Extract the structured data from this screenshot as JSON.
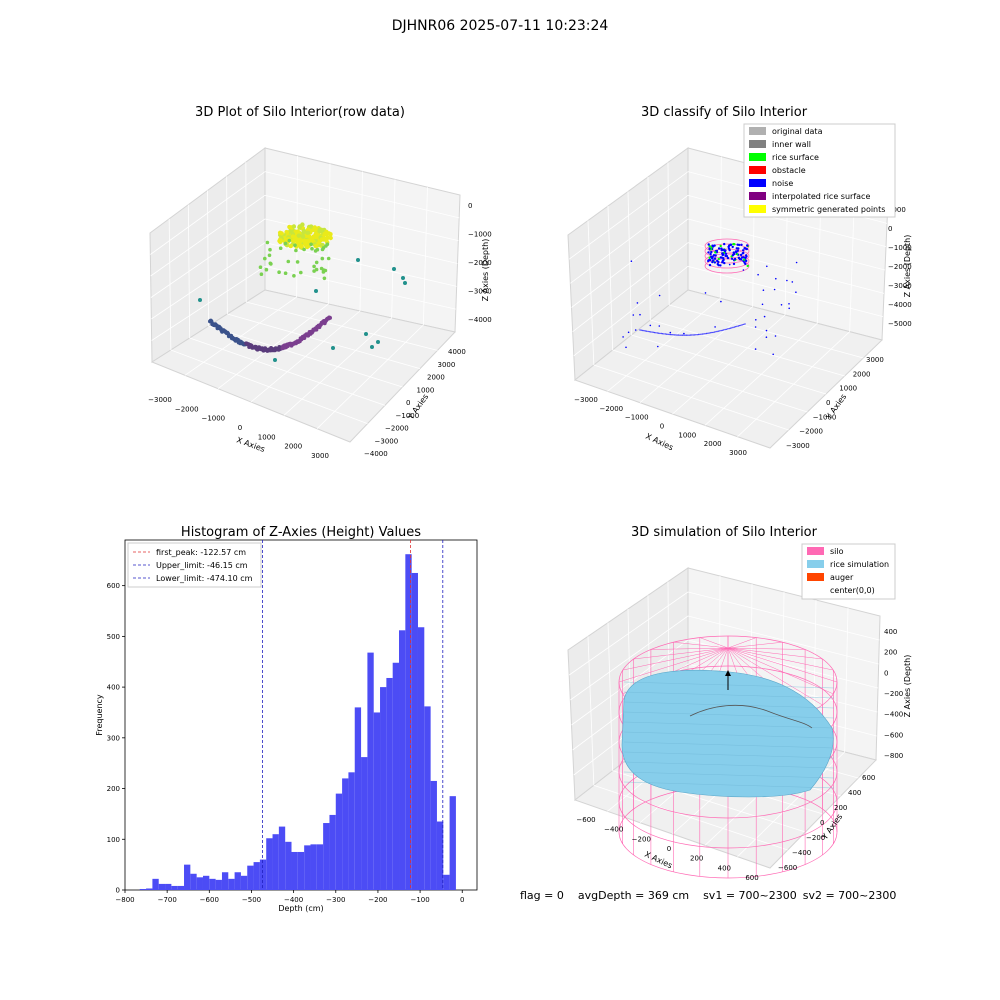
{
  "figure": {
    "suptitle": "DJHNR06 2025-07-11 10:23:24"
  },
  "status": {
    "flag": "flag = 0",
    "avg_depth": "avgDepth = 369 cm",
    "sv1": "sv1 = 700~2300",
    "sv2": "sv2 = 700~2300"
  },
  "colors": {
    "histogram_bar": "#4c4cf5",
    "first_peak_line": "#e03030",
    "limit_lines": "#2020c0",
    "silo": "#ff69b4",
    "rice_simulation": "#87ceeb",
    "auger": "#ff4500",
    "rice_surface": "#00ff00",
    "obstacle": "#ff0000",
    "noise": "#0000ff",
    "interpolated": "#800080",
    "symmetric": "#ffff00",
    "original": "#b0b0b0",
    "inner_wall": "#808080"
  },
  "chart_data": [
    {
      "type": "scatter",
      "subtype": "3d",
      "title": "3D Plot of Silo Interior(row data)",
      "xlabel": "X Axies",
      "ylabel": "Y Axies",
      "zlabel": "Z Axies (Depth)",
      "xticks": [
        "−3000",
        "−2000",
        "−1000",
        "0",
        "1000",
        "2000",
        "3000"
      ],
      "yticks": [
        "−4000",
        "−3000",
        "−2000",
        "−1000",
        "0",
        "1000",
        "2000",
        "3000",
        "4000"
      ],
      "zticks": [
        "−4000",
        "−3000",
        "−2000",
        "−1000",
        "0"
      ]
    },
    {
      "type": "scatter",
      "subtype": "3d",
      "title": "3D classify of Silo Interior",
      "xlabel": "X Axies",
      "ylabel": "Y Axies",
      "zlabel": "Z Axies (Depth)",
      "xticks": [
        "−3000",
        "−2000",
        "−1000",
        "0",
        "1000",
        "2000",
        "3000"
      ],
      "yticks": [
        "−3000",
        "−2000",
        "−1000",
        "0",
        "1000",
        "2000",
        "3000"
      ],
      "zticks": [
        "−5000",
        "−4000",
        "−3000",
        "−2000",
        "−1000",
        "0",
        "1000"
      ],
      "legend_position": "top-right",
      "legend": [
        {
          "label": "original data",
          "color": "#b0b0b0"
        },
        {
          "label": "inner wall",
          "color": "#808080"
        },
        {
          "label": "rice surface",
          "color": "#00ff00"
        },
        {
          "label": "obstacle",
          "color": "#ff0000"
        },
        {
          "label": "noise",
          "color": "#0000ff"
        },
        {
          "label": "interpolated rice surface",
          "color": "#800080"
        },
        {
          "label": "symmetric generated points",
          "color": "#ffff00"
        }
      ]
    },
    {
      "type": "bar",
      "subtype": "histogram",
      "title": "Histogram of Z-Axies (Height) Values",
      "xlabel": "Depth (cm)",
      "ylabel": "Frequency",
      "xlim": [
        -800,
        35
      ],
      "ylim": [
        0,
        690
      ],
      "xticks": [
        -800,
        -700,
        -600,
        -500,
        -400,
        -300,
        -200,
        -100,
        0
      ],
      "xtick_labels": [
        "−800",
        "−700",
        "−600",
        "−500",
        "−400",
        "−300",
        "−200",
        "−100",
        "0"
      ],
      "yticks": [
        0,
        100,
        200,
        300,
        400,
        500,
        600
      ],
      "bin_width": 15,
      "bin_start": -765,
      "values": [
        2,
        3,
        22,
        12,
        12,
        8,
        8,
        50,
        32,
        25,
        28,
        22,
        20,
        35,
        22,
        35,
        28,
        48,
        55,
        60,
        102,
        110,
        125,
        95,
        75,
        75,
        88,
        90,
        90,
        132,
        148,
        190,
        220,
        232,
        360,
        262,
        468,
        350,
        400,
        418,
        448,
        512,
        662,
        625,
        518,
        362,
        215,
        135,
        30,
        185
      ],
      "vlines": [
        {
          "label": "first_peak: -122.57 cm",
          "x": -122.57,
          "style": "first_peak"
        },
        {
          "label": "Upper_limit: -46.15 cm",
          "x": -46.15,
          "style": "limit"
        },
        {
          "label": "Lower_limit: -474.10 cm",
          "x": -474.1,
          "style": "limit"
        }
      ],
      "legend_position": "top-left"
    },
    {
      "type": "scatter",
      "subtype": "3d-surface",
      "title": "3D simulation of Silo Interior",
      "xlabel": "X Axies",
      "ylabel": "Y Axies",
      "zlabel": "Z Axies (Depth)",
      "xticks": [
        "−600",
        "−400",
        "−200",
        "0",
        "200",
        "400",
        "600"
      ],
      "yticks": [
        "−600",
        "−400",
        "−200",
        "0",
        "200",
        "400",
        "600"
      ],
      "zticks": [
        "−800",
        "−600",
        "−400",
        "−200",
        "0",
        "200",
        "400"
      ],
      "legend_position": "top-right",
      "legend": [
        {
          "label": "silo",
          "color": "#ff69b4"
        },
        {
          "label": "rice simulation",
          "color": "#87ceeb"
        },
        {
          "label": "auger",
          "color": "#ff4500"
        },
        {
          "label": "center(0,0)",
          "color": "#ffffff"
        }
      ]
    }
  ]
}
